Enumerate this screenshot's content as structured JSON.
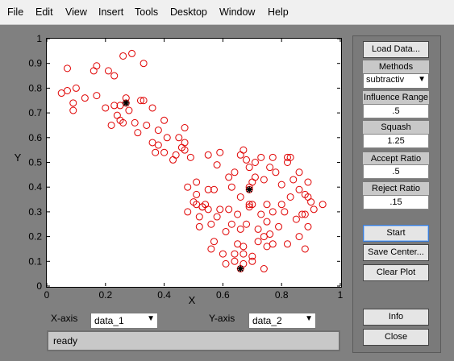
{
  "menu": [
    "File",
    "Edit",
    "View",
    "Insert",
    "Tools",
    "Desktop",
    "Window",
    "Help"
  ],
  "plot": {
    "xlabel": "X",
    "ylabel": "Y",
    "xticks": [
      "0",
      "0.2",
      "0.4",
      "0.6",
      "0.8",
      "1"
    ],
    "yticks": [
      "0",
      "0.1",
      "0.2",
      "0.3",
      "0.4",
      "0.5",
      "0.6",
      "0.7",
      "0.8",
      "0.9",
      "1"
    ]
  },
  "chart_data": {
    "type": "scatter",
    "xlabel": "X",
    "ylabel": "Y",
    "xlim": [
      0,
      1
    ],
    "ylim": [
      0,
      1
    ],
    "series": [
      {
        "points": [
          [
            0.05,
            0.78
          ],
          [
            0.07,
            0.88
          ],
          [
            0.07,
            0.79
          ],
          [
            0.09,
            0.74
          ],
          [
            0.09,
            0.71
          ],
          [
            0.1,
            0.8
          ],
          [
            0.13,
            0.76
          ],
          [
            0.16,
            0.87
          ],
          [
            0.17,
            0.89
          ],
          [
            0.17,
            0.77
          ],
          [
            0.2,
            0.72
          ],
          [
            0.21,
            0.87
          ],
          [
            0.22,
            0.65
          ],
          [
            0.23,
            0.73
          ],
          [
            0.23,
            0.85
          ],
          [
            0.24,
            0.69
          ],
          [
            0.25,
            0.67
          ],
          [
            0.25,
            0.73
          ],
          [
            0.26,
            0.66
          ],
          [
            0.26,
            0.93
          ],
          [
            0.27,
            0.76
          ],
          [
            0.28,
            0.71
          ],
          [
            0.29,
            0.94
          ],
          [
            0.3,
            0.66
          ],
          [
            0.31,
            0.62
          ],
          [
            0.32,
            0.75
          ],
          [
            0.33,
            0.9
          ],
          [
            0.33,
            0.75
          ],
          [
            0.34,
            0.65
          ],
          [
            0.36,
            0.72
          ],
          [
            0.36,
            0.58
          ],
          [
            0.37,
            0.54
          ],
          [
            0.38,
            0.63
          ],
          [
            0.38,
            0.57
          ],
          [
            0.4,
            0.54
          ],
          [
            0.4,
            0.67
          ],
          [
            0.41,
            0.6
          ],
          [
            0.43,
            0.51
          ],
          [
            0.44,
            0.53
          ],
          [
            0.45,
            0.6
          ],
          [
            0.46,
            0.56
          ],
          [
            0.47,
            0.58
          ],
          [
            0.47,
            0.64
          ],
          [
            0.47,
            0.55
          ],
          [
            0.48,
            0.4
          ],
          [
            0.48,
            0.3
          ],
          [
            0.49,
            0.52
          ],
          [
            0.5,
            0.34
          ],
          [
            0.51,
            0.33
          ],
          [
            0.51,
            0.42
          ],
          [
            0.51,
            0.37
          ],
          [
            0.52,
            0.24
          ],
          [
            0.52,
            0.28
          ],
          [
            0.53,
            0.32
          ],
          [
            0.53,
            0.32
          ],
          [
            0.54,
            0.33
          ],
          [
            0.55,
            0.31
          ],
          [
            0.55,
            0.53
          ],
          [
            0.55,
            0.39
          ],
          [
            0.56,
            0.25
          ],
          [
            0.56,
            0.15
          ],
          [
            0.57,
            0.39
          ],
          [
            0.57,
            0.18
          ],
          [
            0.58,
            0.28
          ],
          [
            0.58,
            0.49
          ],
          [
            0.59,
            0.54
          ],
          [
            0.59,
            0.31
          ],
          [
            0.6,
            0.13
          ],
          [
            0.61,
            0.09
          ],
          [
            0.61,
            0.22
          ],
          [
            0.62,
            0.44
          ],
          [
            0.62,
            0.31
          ],
          [
            0.63,
            0.25
          ],
          [
            0.63,
            0.4
          ],
          [
            0.64,
            0.46
          ],
          [
            0.64,
            0.1
          ],
          [
            0.64,
            0.13
          ],
          [
            0.65,
            0.17
          ],
          [
            0.65,
            0.29
          ],
          [
            0.66,
            0.36
          ],
          [
            0.66,
            0.53
          ],
          [
            0.66,
            0.23
          ],
          [
            0.67,
            0.55
          ],
          [
            0.67,
            0.16
          ],
          [
            0.67,
            0.09
          ],
          [
            0.67,
            0.13
          ],
          [
            0.68,
            0.25
          ],
          [
            0.68,
            0.51
          ],
          [
            0.69,
            0.4
          ],
          [
            0.69,
            0.33
          ],
          [
            0.69,
            0.48
          ],
          [
            0.69,
            0.32
          ],
          [
            0.7,
            0.42
          ],
          [
            0.7,
            0.1
          ],
          [
            0.7,
            0.12
          ],
          [
            0.7,
            0.33
          ],
          [
            0.71,
            0.5
          ],
          [
            0.71,
            0.44
          ],
          [
            0.72,
            0.23
          ],
          [
            0.72,
            0.18
          ],
          [
            0.73,
            0.29
          ],
          [
            0.73,
            0.52
          ],
          [
            0.74,
            0.43
          ],
          [
            0.74,
            0.2
          ],
          [
            0.74,
            0.07
          ],
          [
            0.75,
            0.16
          ],
          [
            0.75,
            0.26
          ],
          [
            0.75,
            0.33
          ],
          [
            0.76,
            0.21
          ],
          [
            0.76,
            0.48
          ],
          [
            0.77,
            0.3
          ],
          [
            0.77,
            0.17
          ],
          [
            0.77,
            0.52
          ],
          [
            0.78,
            0.46
          ],
          [
            0.79,
            0.24
          ],
          [
            0.8,
            0.33
          ],
          [
            0.8,
            0.41
          ],
          [
            0.81,
            0.3
          ],
          [
            0.82,
            0.17
          ],
          [
            0.82,
            0.52
          ],
          [
            0.82,
            0.5
          ],
          [
            0.83,
            0.36
          ],
          [
            0.83,
            0.52
          ],
          [
            0.84,
            0.43
          ],
          [
            0.85,
            0.27
          ],
          [
            0.86,
            0.39
          ],
          [
            0.86,
            0.46
          ],
          [
            0.86,
            0.2
          ],
          [
            0.87,
            0.29
          ],
          [
            0.88,
            0.29
          ],
          [
            0.88,
            0.15
          ],
          [
            0.88,
            0.37
          ],
          [
            0.89,
            0.24
          ],
          [
            0.89,
            0.36
          ],
          [
            0.89,
            0.42
          ],
          [
            0.9,
            0.34
          ],
          [
            0.91,
            0.31
          ],
          [
            0.94,
            0.33
          ]
        ]
      },
      {
        "name": "centers",
        "points": [
          [
            0.27,
            0.74
          ],
          [
            0.69,
            0.39
          ],
          [
            0.66,
            0.07
          ]
        ]
      }
    ]
  },
  "axis_controls": {
    "x_label": "X-axis",
    "x_value": "data_1",
    "y_label": "Y-axis",
    "y_value": "data_2"
  },
  "status": "ready",
  "panel": {
    "load_data": "Load Data...",
    "methods_label": "Methods",
    "method_value": "subtractiv",
    "influence_label": "Influence Range",
    "influence_value": ".5",
    "squash_label": "Squash",
    "squash_value": "1.25",
    "accept_label": "Accept Ratio",
    "accept_value": ".5",
    "reject_label": "Reject Ratio",
    "reject_value": ".15",
    "start": "Start",
    "save_center": "Save Center...",
    "clear_plot": "Clear Plot",
    "info": "Info",
    "close": "Close"
  },
  "colors": {
    "points": "#e00000",
    "centers": "#000000"
  }
}
